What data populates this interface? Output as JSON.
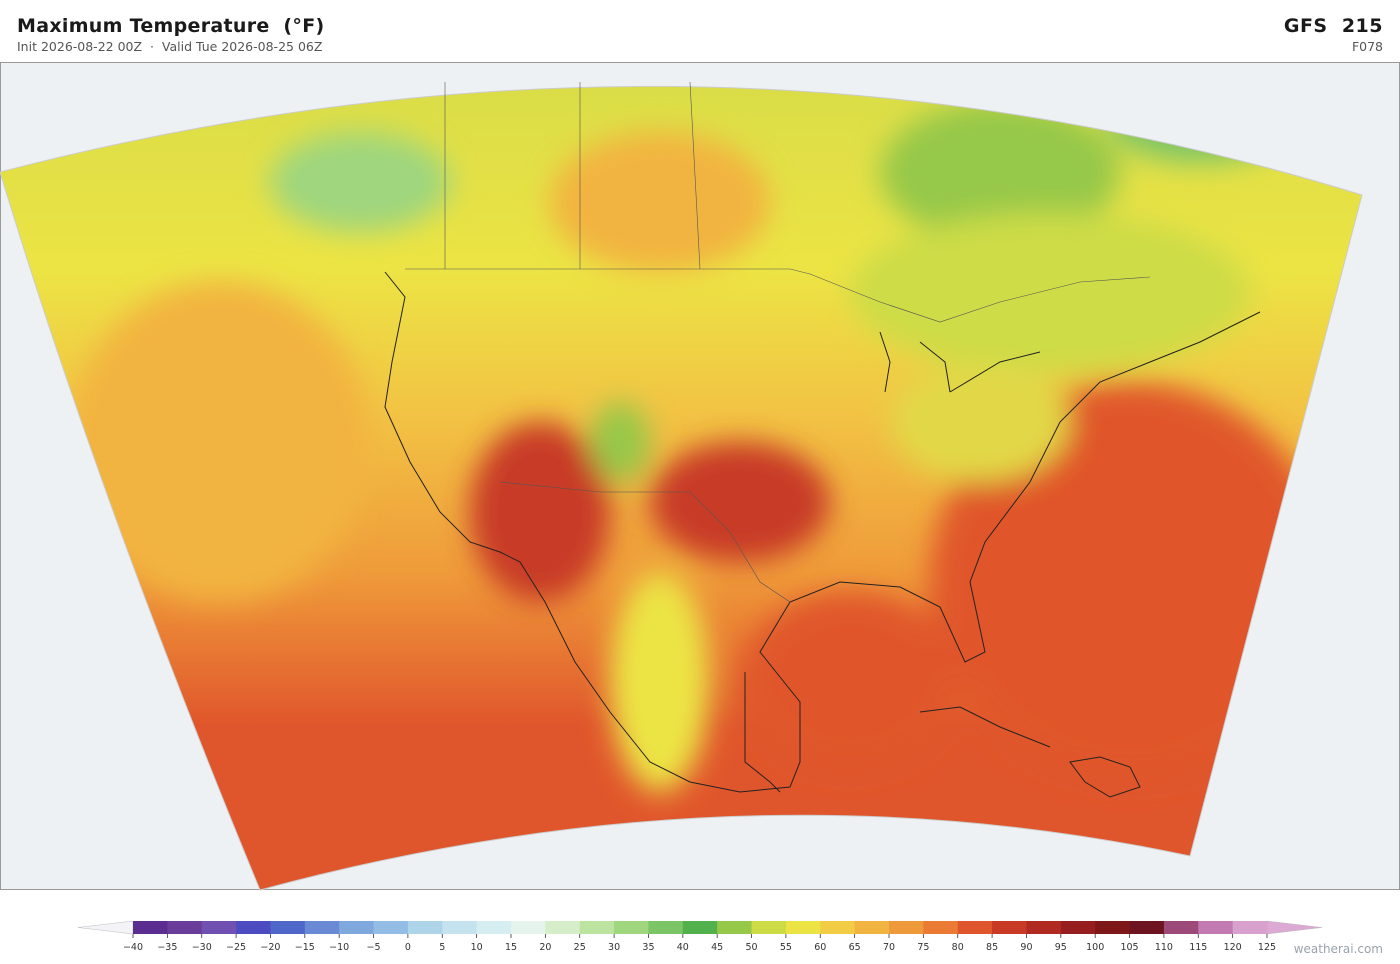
{
  "header": {
    "title": "Maximum Temperature  (°F)",
    "subtitle": "Init 2026-08-22 00Z  ·  Valid Tue 2026-08-25 06Z",
    "model": "GFS  215",
    "forecast_hour": "F078"
  },
  "colorbar": {
    "ticks": [
      {
        "value": -40,
        "label": "−40"
      },
      {
        "value": -35,
        "label": "−35"
      },
      {
        "value": -30,
        "label": "−30"
      },
      {
        "value": -25,
        "label": "−25"
      },
      {
        "value": -20,
        "label": "−20"
      },
      {
        "value": -15,
        "label": "−15"
      },
      {
        "value": -10,
        "label": "−10"
      },
      {
        "value": -5,
        "label": "−5"
      },
      0,
      5,
      10,
      15,
      20,
      25,
      30,
      35,
      40,
      45,
      50,
      55,
      60,
      65,
      70,
      75,
      80,
      85,
      90,
      95,
      100,
      105,
      110,
      115,
      120,
      125
    ],
    "colors": [
      "#5c2d91",
      "#6a3d9a",
      "#7050b0",
      "#4c4cc0",
      "#4e67c8",
      "#6a8ad6",
      "#7fa8dc",
      "#93bde4",
      "#aed4ea",
      "#c4e3ef",
      "#d6eef2",
      "#e6f4ee",
      "#d5edc9",
      "#bde3a0",
      "#9fd67e",
      "#7cc566",
      "#52b14c",
      "#96c84a",
      "#cddc46",
      "#ece444",
      "#f2cc44",
      "#f2b440",
      "#ef9a3a",
      "#ea7a34",
      "#e0562c",
      "#c83a26",
      "#b02a22",
      "#961e1e",
      "#7e1818",
      "#6e1420",
      "#9c4a7a",
      "#c27ab0",
      "#d8a0cc"
    ],
    "under_color": "#f4f4f8",
    "over_color": "#dca8d4"
  },
  "footer": {
    "credit": "weatherai.com"
  }
}
